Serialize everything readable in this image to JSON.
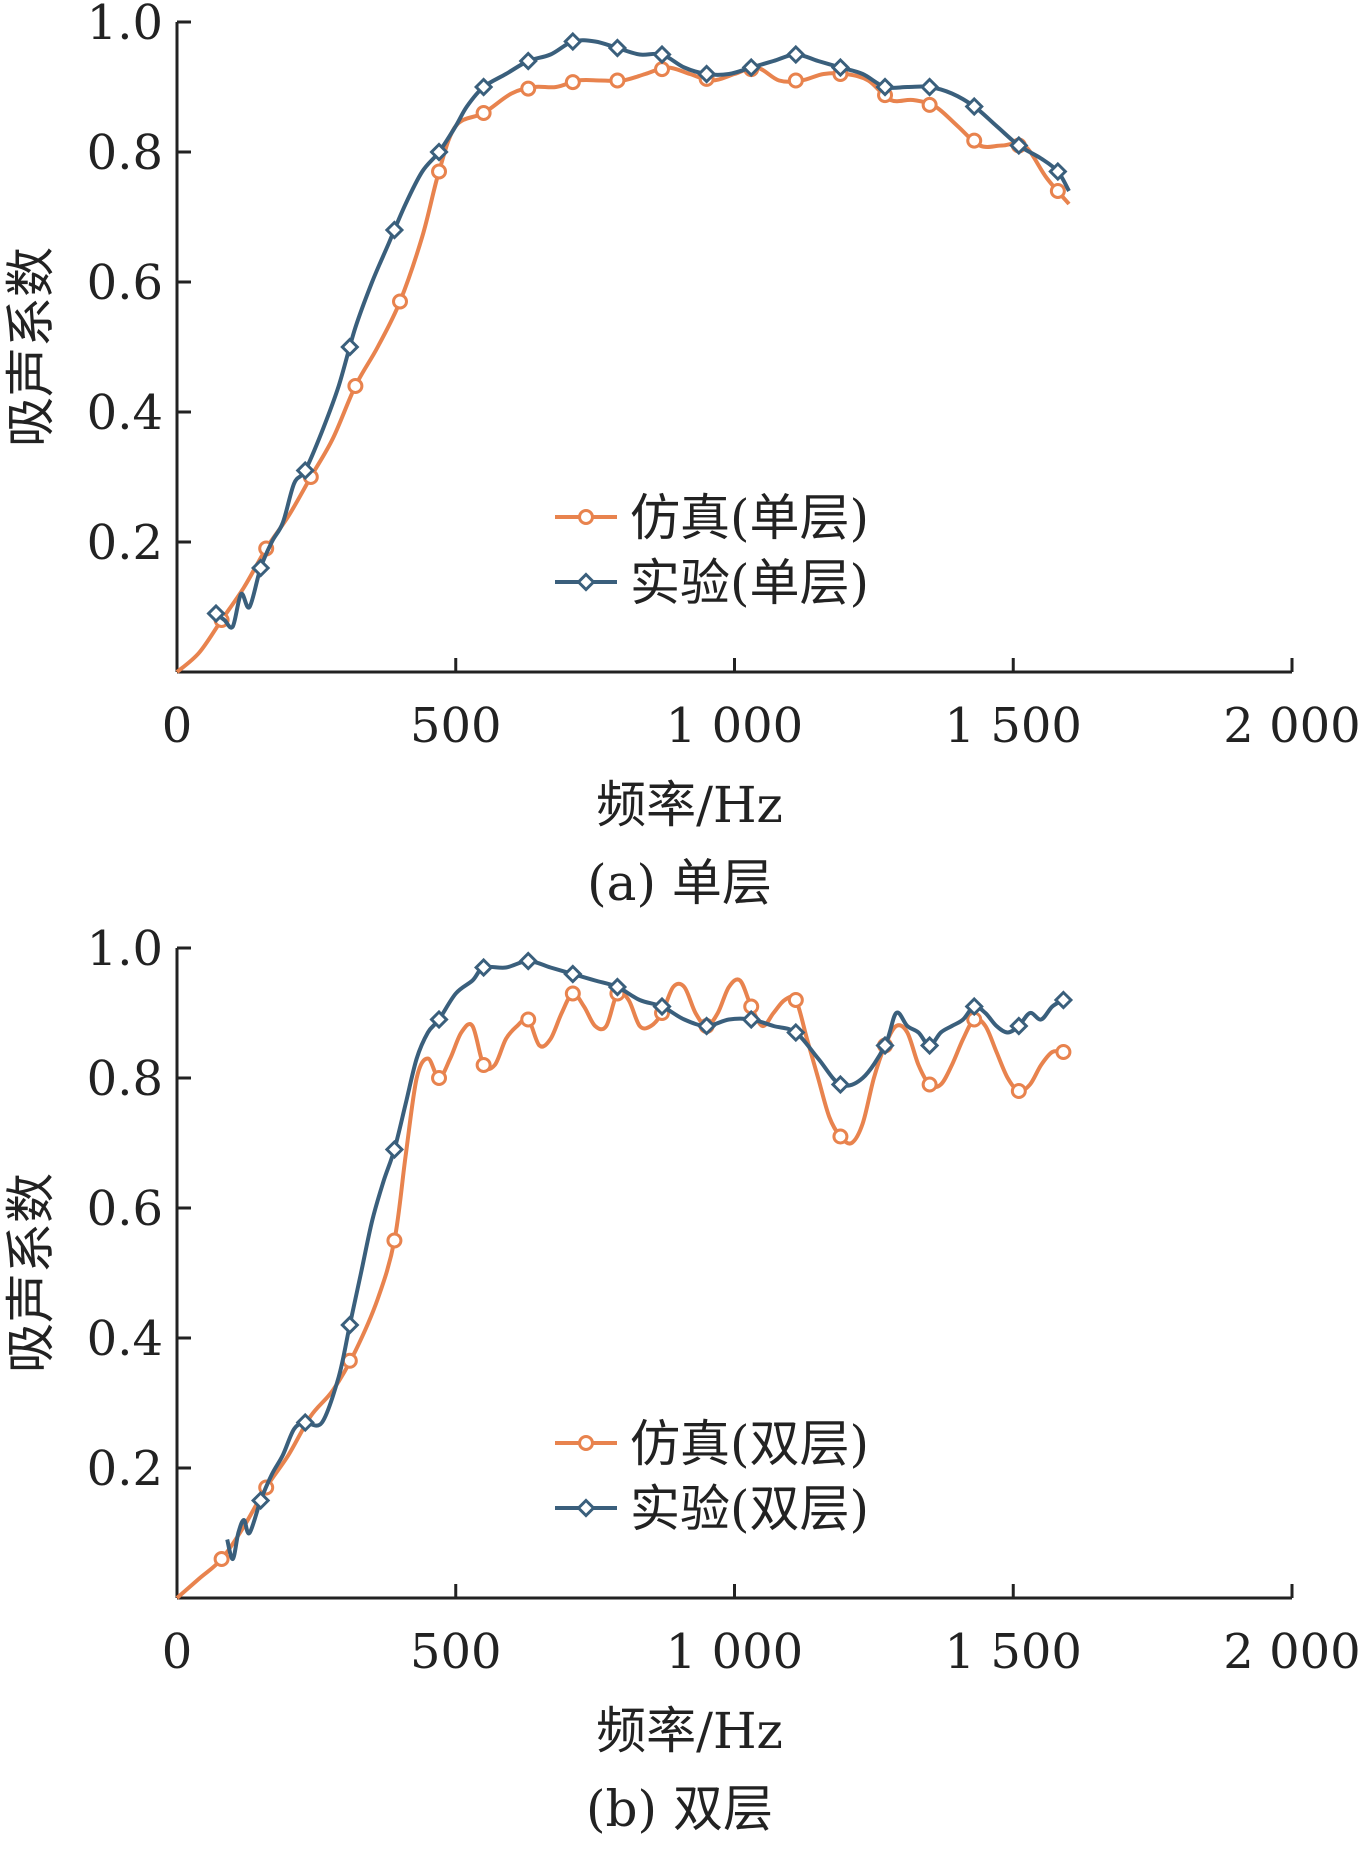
{
  "colors": {
    "sim": "#e8834e",
    "exp": "#3a5f7c",
    "axis": "#222222"
  },
  "chart_data": [
    {
      "type": "line",
      "caption": "(a) 单层",
      "xlabel": "频率/Hz",
      "ylabel": "吸声系数",
      "xlim": [
        0,
        2000
      ],
      "ylim": [
        0,
        1.0
      ],
      "xticks": [
        0,
        500,
        1000,
        1500,
        2000
      ],
      "xtick_labels": [
        "0",
        "500",
        "1 000",
        "1 500",
        "2 000"
      ],
      "yticks": [
        0.2,
        0.4,
        0.6,
        0.8,
        1.0
      ],
      "ytick_labels": [
        "0.2",
        "0.4",
        "0.6",
        "0.8",
        "1.0"
      ],
      "legend_position": "center",
      "series": [
        {
          "name": "仿真(单层)",
          "color": "#e8834e",
          "marker": "circle",
          "x": [
            0,
            40,
            80,
            120,
            160,
            200,
            240,
            280,
            320,
            360,
            400,
            440,
            470,
            500,
            550,
            600,
            640,
            680,
            720,
            760,
            800,
            840,
            880,
            920,
            960,
            1000,
            1040,
            1080,
            1120,
            1160,
            1200,
            1240,
            1280,
            1320,
            1360,
            1400,
            1440,
            1480,
            1520,
            1560,
            1600
          ],
          "y": [
            0.0,
            0.03,
            0.08,
            0.13,
            0.19,
            0.24,
            0.3,
            0.36,
            0.44,
            0.5,
            0.57,
            0.67,
            0.77,
            0.84,
            0.86,
            0.89,
            0.9,
            0.9,
            0.91,
            0.91,
            0.91,
            0.92,
            0.93,
            0.92,
            0.91,
            0.92,
            0.93,
            0.91,
            0.91,
            0.92,
            0.92,
            0.91,
            0.88,
            0.88,
            0.87,
            0.84,
            0.81,
            0.81,
            0.81,
            0.76,
            0.72
          ],
          "marker_x": [
            80,
            160,
            240,
            320,
            400,
            470,
            550,
            630,
            710,
            790,
            870,
            950,
            1030,
            1110,
            1190,
            1270,
            1350,
            1430,
            1510,
            1580
          ]
        },
        {
          "name": "实验(单层)",
          "color": "#3a5f7c",
          "marker": "diamond",
          "x": [
            70,
            85,
            100,
            115,
            130,
            150,
            170,
            190,
            210,
            230,
            260,
            290,
            320,
            350,
            380,
            410,
            440,
            470,
            500,
            520,
            550,
            590,
            630,
            670,
            710,
            750,
            790,
            830,
            870,
            910,
            950,
            990,
            1030,
            1070,
            1110,
            1150,
            1190,
            1230,
            1270,
            1310,
            1350,
            1390,
            1430,
            1470,
            1510,
            1550,
            1580,
            1600
          ],
          "y": [
            0.09,
            0.08,
            0.07,
            0.12,
            0.1,
            0.16,
            0.2,
            0.23,
            0.29,
            0.31,
            0.37,
            0.44,
            0.53,
            0.6,
            0.66,
            0.72,
            0.77,
            0.8,
            0.84,
            0.87,
            0.9,
            0.92,
            0.94,
            0.95,
            0.97,
            0.97,
            0.96,
            0.95,
            0.95,
            0.93,
            0.92,
            0.92,
            0.93,
            0.94,
            0.95,
            0.94,
            0.93,
            0.92,
            0.9,
            0.9,
            0.9,
            0.89,
            0.87,
            0.84,
            0.81,
            0.79,
            0.77,
            0.74
          ],
          "marker_x": [
            70,
            150,
            230,
            310,
            390,
            470,
            550,
            630,
            710,
            790,
            870,
            950,
            1030,
            1110,
            1190,
            1270,
            1350,
            1430,
            1510,
            1580
          ]
        }
      ]
    },
    {
      "type": "line",
      "caption": "(b) 双层",
      "xlabel": "频率/Hz",
      "ylabel": "吸声系数",
      "xlim": [
        0,
        2000
      ],
      "ylim": [
        0,
        1.0
      ],
      "xticks": [
        0,
        500,
        1000,
        1500,
        2000
      ],
      "xtick_labels": [
        "0",
        "500",
        "1 000",
        "1 500",
        "2 000"
      ],
      "yticks": [
        0.2,
        0.4,
        0.6,
        0.8,
        1.0
      ],
      "ytick_labels": [
        "0.2",
        "0.4",
        "0.6",
        "0.8",
        "1.0"
      ],
      "legend_position": "center",
      "series": [
        {
          "name": "仿真(双层)",
          "color": "#e8834e",
          "marker": "circle",
          "x": [
            0,
            40,
            80,
            120,
            160,
            200,
            240,
            280,
            320,
            360,
            390,
            410,
            430,
            450,
            470,
            490,
            510,
            530,
            550,
            570,
            590,
            610,
            630,
            650,
            670,
            690,
            710,
            730,
            750,
            770,
            790,
            810,
            830,
            850,
            870,
            890,
            910,
            930,
            950,
            970,
            990,
            1010,
            1030,
            1050,
            1070,
            1090,
            1110,
            1130,
            1150,
            1170,
            1190,
            1210,
            1230,
            1250,
            1270,
            1290,
            1310,
            1330,
            1350,
            1370,
            1390,
            1410,
            1430,
            1450,
            1470,
            1490,
            1510,
            1530,
            1550,
            1570,
            1590
          ],
          "y": [
            0.0,
            0.03,
            0.06,
            0.11,
            0.17,
            0.22,
            0.28,
            0.32,
            0.38,
            0.46,
            0.55,
            0.68,
            0.8,
            0.83,
            0.8,
            0.83,
            0.87,
            0.88,
            0.82,
            0.82,
            0.86,
            0.88,
            0.89,
            0.85,
            0.86,
            0.9,
            0.93,
            0.91,
            0.88,
            0.88,
            0.93,
            0.92,
            0.88,
            0.88,
            0.9,
            0.94,
            0.94,
            0.9,
            0.88,
            0.9,
            0.94,
            0.95,
            0.91,
            0.88,
            0.9,
            0.92,
            0.92,
            0.86,
            0.8,
            0.74,
            0.71,
            0.7,
            0.73,
            0.8,
            0.85,
            0.88,
            0.87,
            0.82,
            0.79,
            0.79,
            0.82,
            0.86,
            0.89,
            0.88,
            0.84,
            0.8,
            0.78,
            0.79,
            0.82,
            0.84,
            0.84
          ],
          "marker_x": [
            80,
            160,
            310,
            390,
            470,
            550,
            630,
            710,
            790,
            870,
            950,
            1030,
            1110,
            1190,
            1270,
            1350,
            1430,
            1510,
            1590
          ]
        },
        {
          "name": "实验(双层)",
          "color": "#3a5f7c",
          "marker": "diamond",
          "x": [
            90,
            100,
            110,
            120,
            130,
            150,
            170,
            190,
            210,
            230,
            260,
            290,
            310,
            330,
            350,
            370,
            390,
            410,
            430,
            450,
            470,
            500,
            530,
            550,
            590,
            630,
            670,
            710,
            750,
            790,
            830,
            870,
            910,
            950,
            990,
            1030,
            1070,
            1110,
            1150,
            1190,
            1230,
            1270,
            1290,
            1310,
            1330,
            1350,
            1370,
            1390,
            1410,
            1430,
            1450,
            1470,
            1490,
            1510,
            1530,
            1550,
            1570,
            1590
          ],
          "y": [
            0.09,
            0.06,
            0.1,
            0.12,
            0.1,
            0.15,
            0.19,
            0.22,
            0.26,
            0.27,
            0.27,
            0.34,
            0.42,
            0.5,
            0.58,
            0.64,
            0.69,
            0.76,
            0.83,
            0.87,
            0.89,
            0.93,
            0.95,
            0.97,
            0.97,
            0.98,
            0.97,
            0.96,
            0.95,
            0.94,
            0.92,
            0.91,
            0.89,
            0.88,
            0.89,
            0.89,
            0.88,
            0.87,
            0.83,
            0.79,
            0.8,
            0.85,
            0.9,
            0.88,
            0.87,
            0.85,
            0.87,
            0.88,
            0.89,
            0.91,
            0.9,
            0.88,
            0.87,
            0.88,
            0.9,
            0.89,
            0.91,
            0.92
          ],
          "marker_x": [
            150,
            230,
            310,
            390,
            470,
            550,
            630,
            710,
            790,
            870,
            950,
            1030,
            1110,
            1190,
            1270,
            1350,
            1430,
            1510,
            1590
          ]
        }
      ]
    }
  ]
}
